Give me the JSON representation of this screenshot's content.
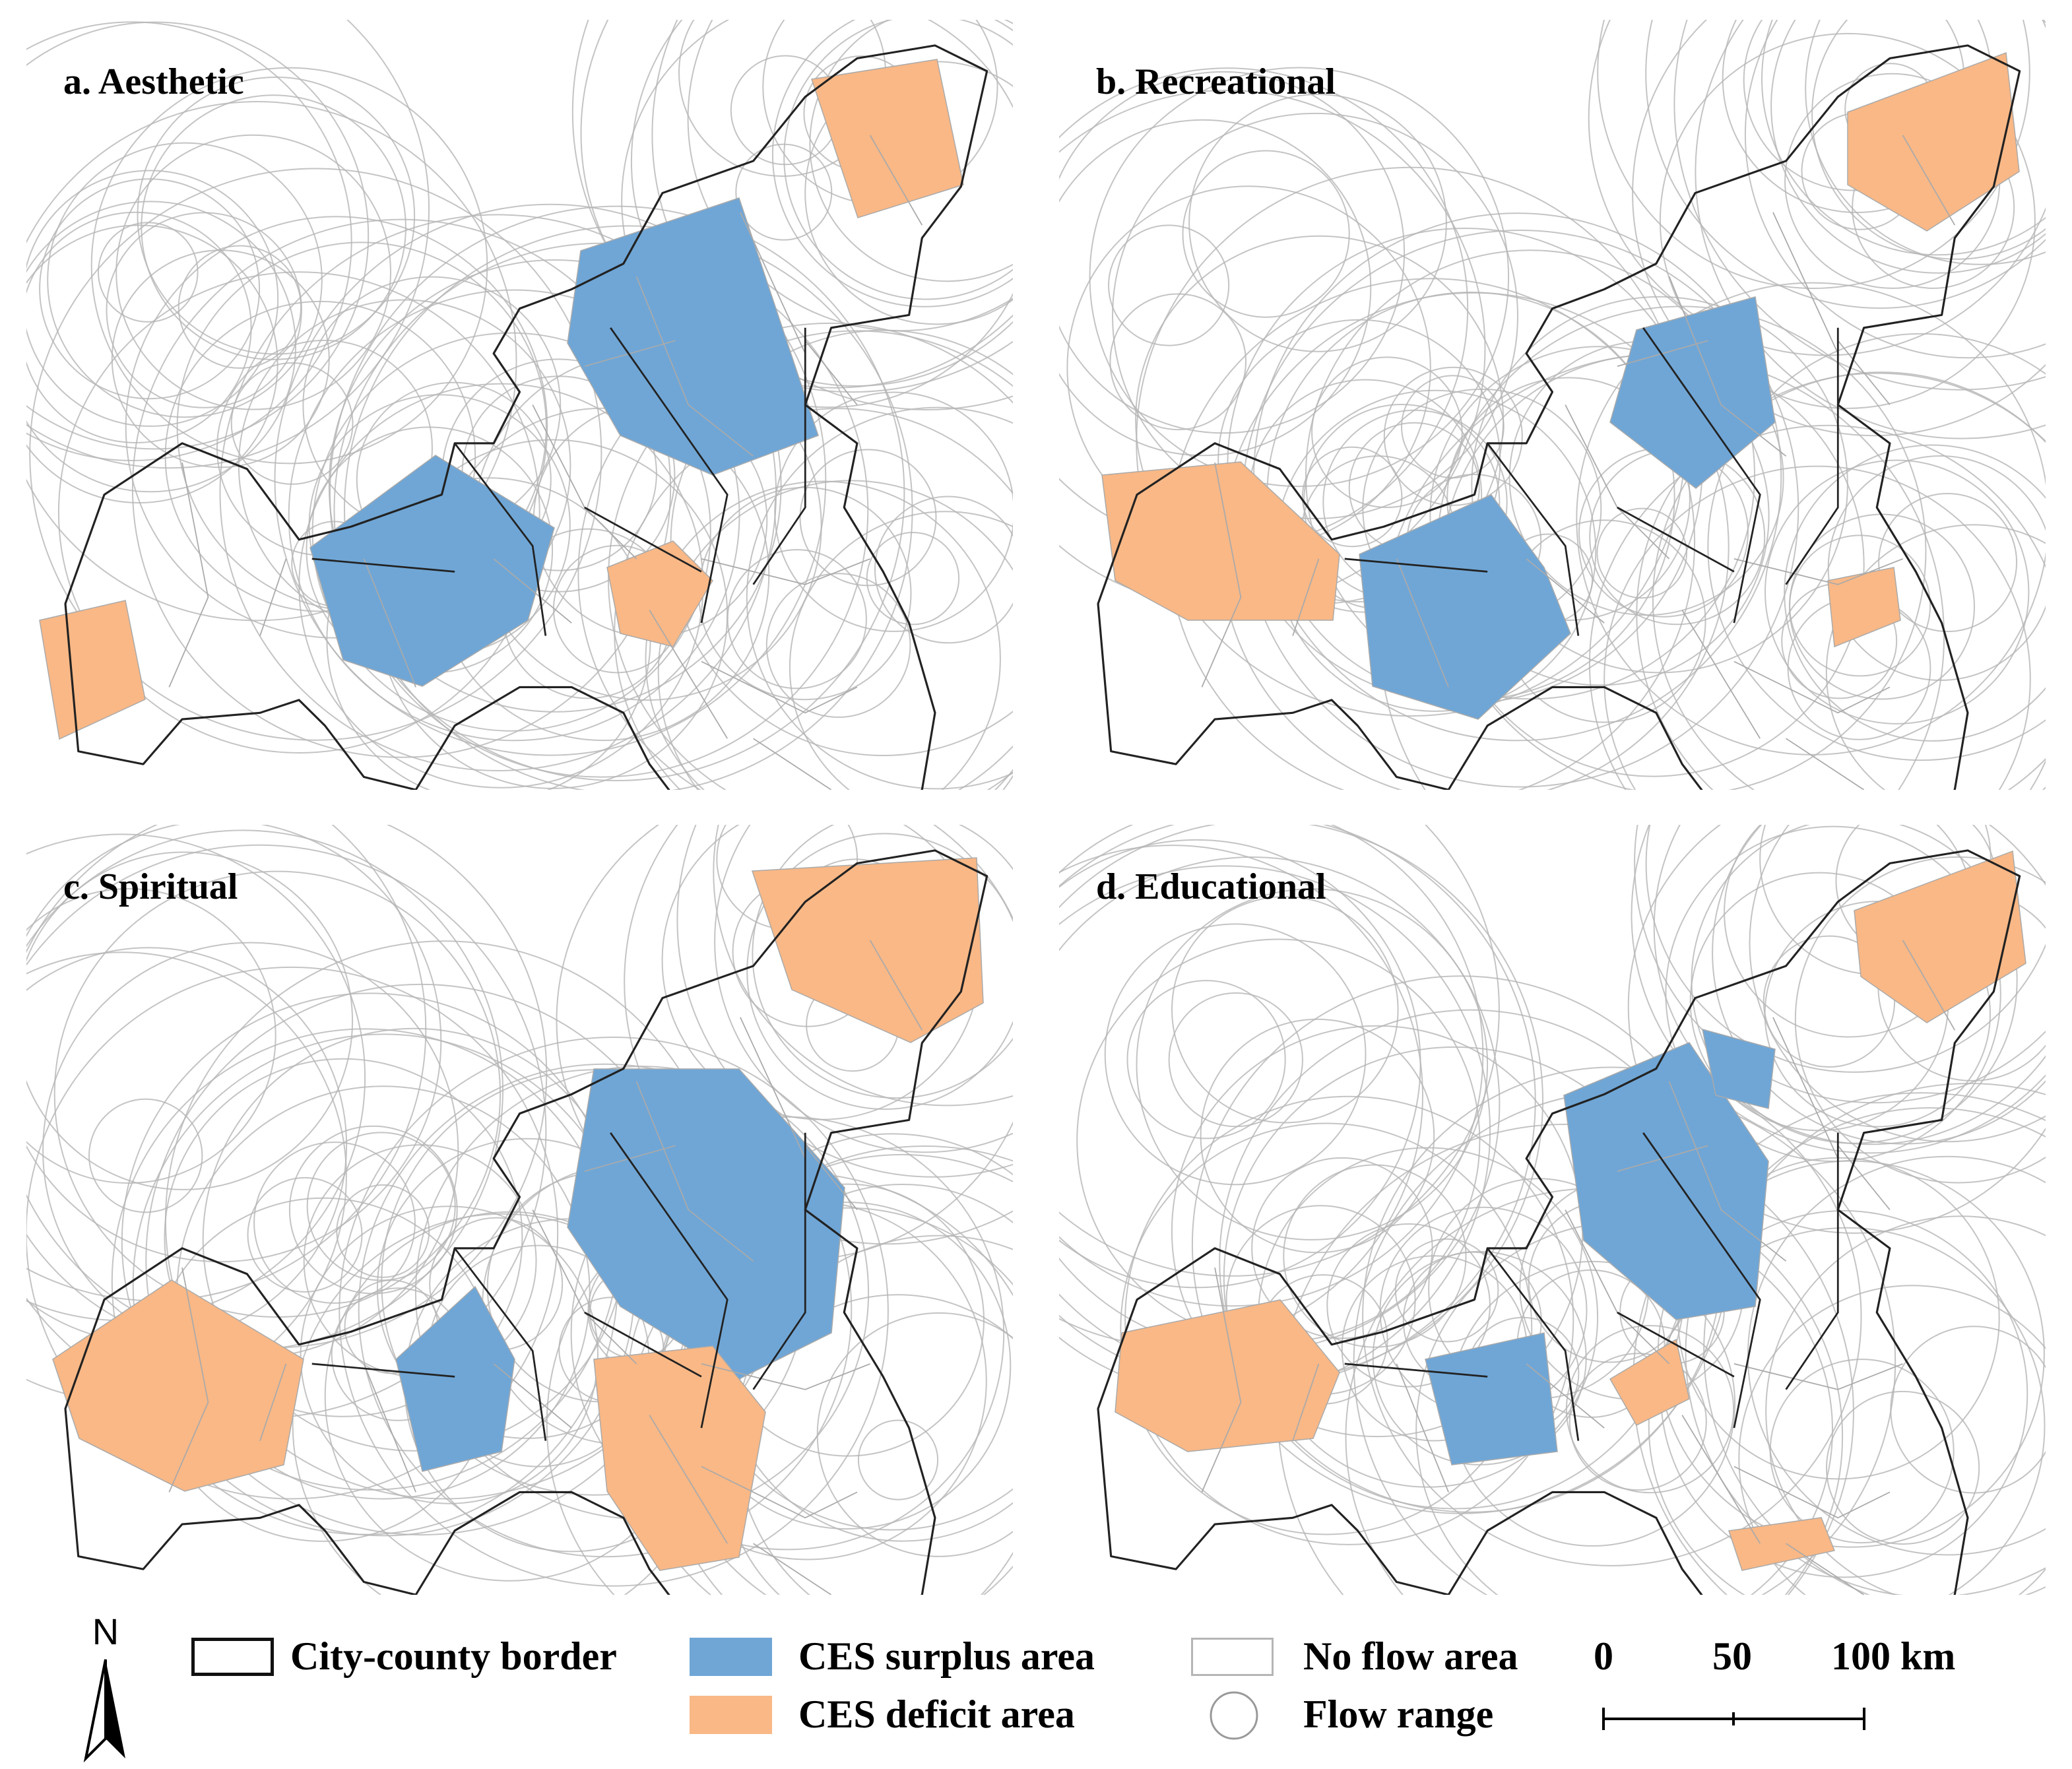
{
  "panels": [
    {
      "id": "a",
      "title": "a. Aesthetic",
      "surplus": [
        [
          440,
          190,
          560,
          150,
          620,
          330,
          540,
          360,
          470,
          330,
          430,
          260
        ],
        [
          235,
          415,
          330,
          345,
          420,
          400,
          400,
          470,
          320,
          520,
          260,
          500
        ]
      ],
      "deficit": [
        [
          615,
          60,
          710,
          45,
          730,
          140,
          650,
          165
        ],
        [
          30,
          470,
          95,
          455,
          110,
          530,
          45,
          560
        ],
        [
          460,
          430,
          510,
          410,
          540,
          440,
          510,
          490,
          470,
          480
        ]
      ]
    },
    {
      "id": "b",
      "title": "b. Recreational",
      "surplus": [
        [
          1240,
          250,
          1330,
          225,
          1345,
          320,
          1285,
          370,
          1220,
          320
        ],
        [
          1030,
          420,
          1130,
          375,
          1170,
          430,
          1190,
          480,
          1120,
          545,
          1040,
          520
        ]
      ],
      "deficit": [
        [
          1400,
          85,
          1520,
          40,
          1530,
          130,
          1460,
          175,
          1400,
          140
        ],
        [
          835,
          360,
          940,
          350,
          1015,
          420,
          1010,
          470,
          900,
          470,
          845,
          440
        ],
        [
          1385,
          440,
          1435,
          430,
          1440,
          470,
          1390,
          490
        ]
      ]
    },
    {
      "id": "c",
      "title": "c. Spiritual",
      "surplus": [
        [
          450,
          810,
          560,
          810,
          640,
          900,
          630,
          1010,
          560,
          1045,
          470,
          990,
          430,
          930
        ],
        [
          300,
          1030,
          360,
          975,
          390,
          1030,
          380,
          1100,
          320,
          1115
        ]
      ],
      "deficit": [
        [
          570,
          660,
          740,
          650,
          745,
          760,
          690,
          790,
          600,
          750
        ],
        [
          40,
          1030,
          130,
          970,
          230,
          1030,
          215,
          1110,
          140,
          1130,
          60,
          1090
        ],
        [
          450,
          1030,
          540,
          1020,
          580,
          1070,
          560,
          1180,
          500,
          1190,
          460,
          1130
        ]
      ]
    },
    {
      "id": "d",
      "title": "d. Educational",
      "surplus": [
        [
          1185,
          830,
          1280,
          790,
          1340,
          880,
          1330,
          990,
          1270,
          1000,
          1200,
          940
        ],
        [
          1080,
          1030,
          1170,
          1010,
          1180,
          1100,
          1100,
          1110
        ],
        [
          1290,
          780,
          1345,
          795,
          1340,
          840,
          1300,
          830
        ]
      ],
      "deficit": [
        [
          1405,
          690,
          1525,
          645,
          1535,
          730,
          1460,
          775,
          1410,
          740
        ],
        [
          850,
          1010,
          970,
          985,
          1015,
          1040,
          995,
          1090,
          900,
          1100,
          845,
          1070
        ],
        [
          1220,
          1045,
          1270,
          1015,
          1280,
          1060,
          1240,
          1080
        ],
        [
          1310,
          1160,
          1380,
          1150,
          1390,
          1175,
          1320,
          1190
        ]
      ]
    }
  ],
  "legend": {
    "north": "N",
    "border_label": "City-county border",
    "surplus_label": "CES surplus area",
    "deficit_label": "CES deficit area",
    "noflow_label": "No flow area",
    "flow_label": "Flow range",
    "scale_ticks": [
      "0",
      "50",
      "100 km"
    ]
  },
  "colors": {
    "surplus": "#6fa6d6",
    "deficit": "#f9b886",
    "border": "#222222",
    "subborder": "#aaaaaa",
    "flow": "#b5b5b5"
  }
}
